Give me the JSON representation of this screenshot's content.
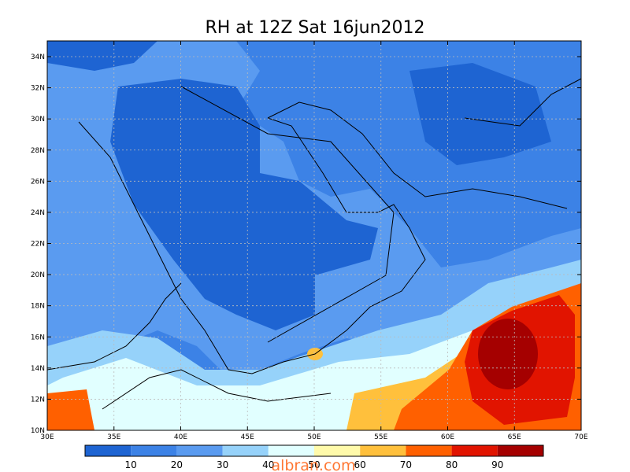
{
  "map": {
    "title": "RH at 12Z Sat 16jun2012",
    "lat_labels": [
      "10N",
      "12N",
      "14N",
      "16N",
      "18N",
      "20N",
      "22N",
      "24N",
      "26N",
      "28N",
      "30N",
      "32N",
      "34N"
    ],
    "lon_labels": [
      "30E",
      "35E",
      "40E",
      "45E",
      "50E",
      "55E",
      "60E",
      "65E",
      "70E"
    ]
  },
  "colorbar": {
    "colors": [
      "#1e64d2",
      "#3c82e6",
      "#5a9bf0",
      "#96d2fa",
      "#e1ffff",
      "#fffaaa",
      "#ffc03c",
      "#ff6000",
      "#e11400",
      "#a50000"
    ],
    "labels": [
      10,
      20,
      30,
      40,
      50,
      60,
      70,
      80,
      90
    ]
  },
  "watermark": "albran.com"
}
